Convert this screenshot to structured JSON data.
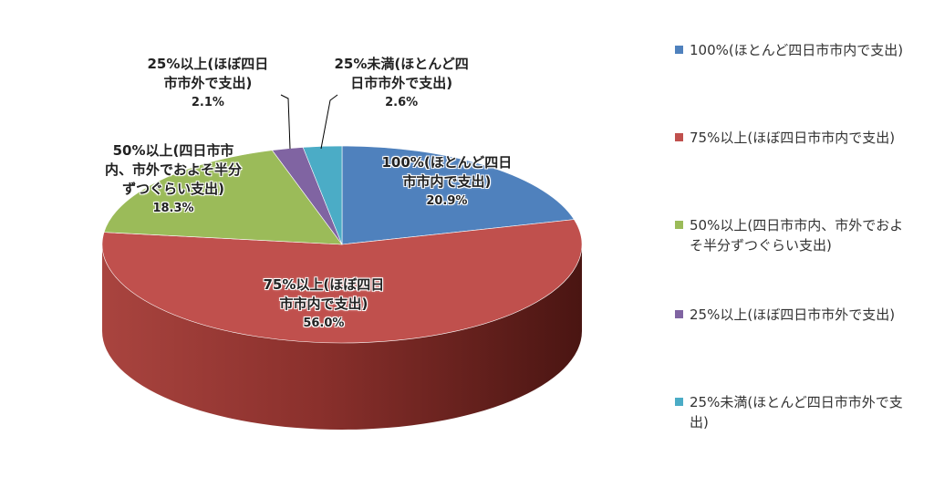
{
  "chart_data": {
    "type": "pie",
    "style": "3d",
    "start": "top, clockwise",
    "slices": [
      {
        "name": "100%(ほとんど四日市市内で支出)",
        "label_lines": [
          "100%(ほとんど四日",
          "市市内で支出)"
        ],
        "value": 20.9,
        "pct": "20.9%",
        "color": "#4f81bd"
      },
      {
        "name": "75%以上(ほぼ四日市市内で支出)",
        "label_lines": [
          "75%以上(ほぼ四日",
          "市市内で支出)"
        ],
        "value": 56.0,
        "pct": "56.0%",
        "color": "#c0504d"
      },
      {
        "name": "50%以上(四日市市内、市外でおよそ半分ずつぐらい支出)",
        "label_lines": [
          "50%以上(四日市市",
          "内、市外でおよそ半分",
          "ずつぐらい支出)"
        ],
        "value": 18.3,
        "pct": "18.3%",
        "color": "#9bbb59"
      },
      {
        "name": "25%以上(ほぼ四日市市外で支出)",
        "label_lines": [
          "25%以上(ほぼ四日",
          "市市外で支出)"
        ],
        "value": 2.1,
        "pct": "2.1%",
        "color": "#8064a2"
      },
      {
        "name": "25%未満(ほとんど四日市市外で支出)",
        "label_lines": [
          "25%未満(ほとんど四",
          "日市市外で支出)"
        ],
        "value": 2.6,
        "pct": "2.6%",
        "color": "#4bacc6"
      }
    ],
    "legend_position": "right"
  }
}
